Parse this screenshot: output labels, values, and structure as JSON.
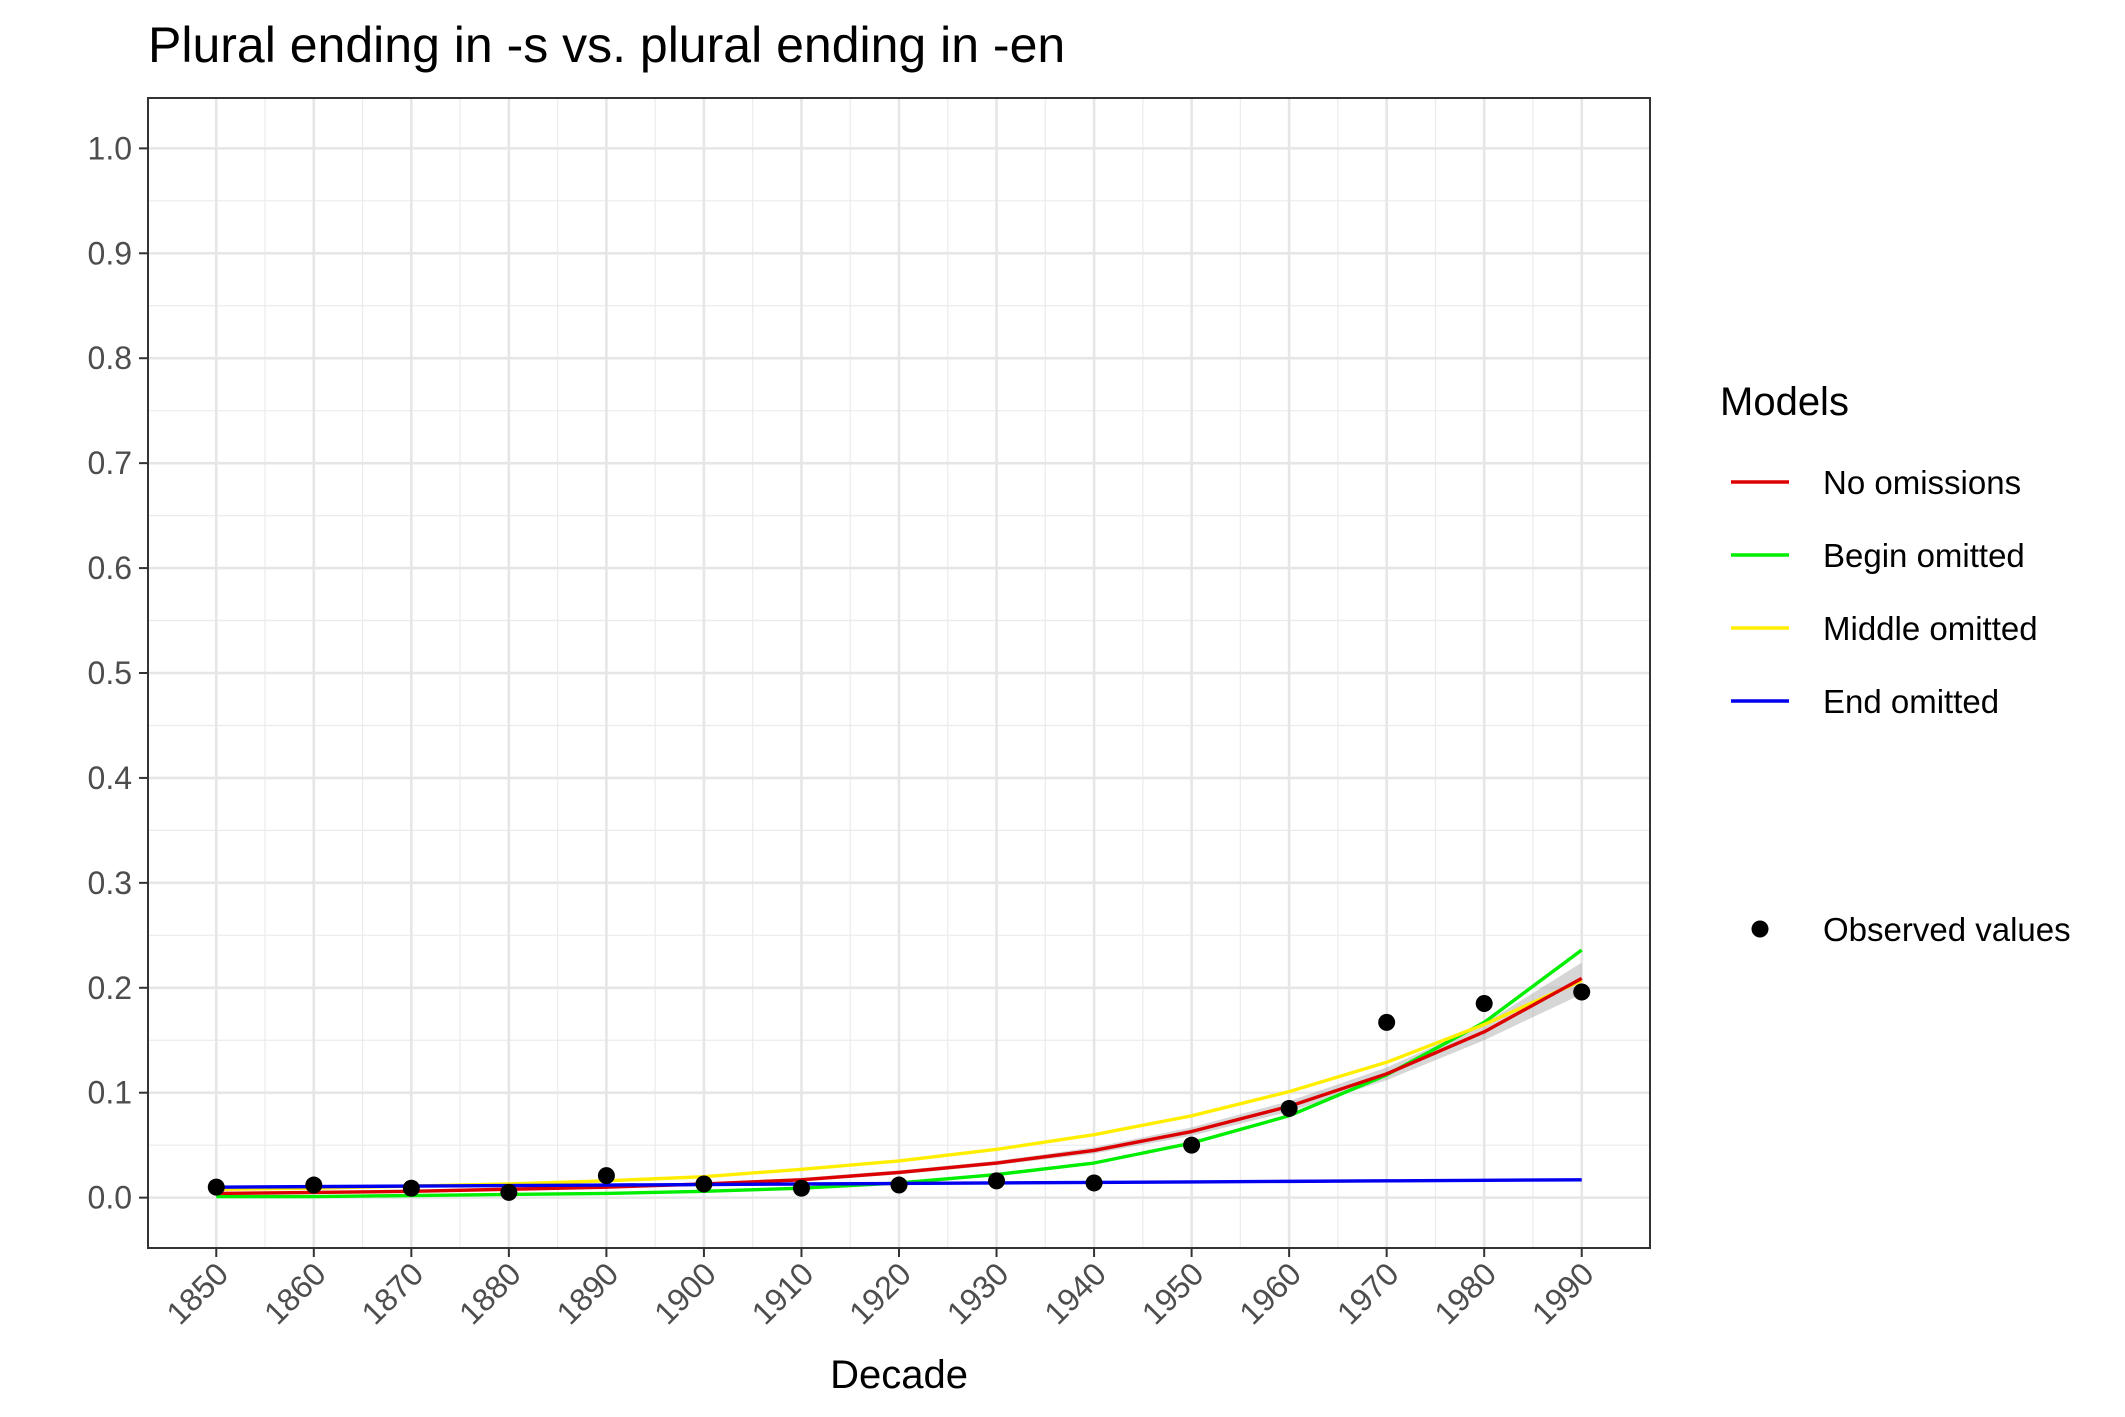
{
  "chart_data": {
    "type": "line",
    "title": "Plural ending in -s vs. plural ending in -en",
    "xlabel": "Decade",
    "ylabel": "",
    "x": [
      1850,
      1860,
      1870,
      1880,
      1890,
      1900,
      1910,
      1920,
      1930,
      1940,
      1950,
      1960,
      1970,
      1980,
      1990
    ],
    "xlim": [
      1843,
      1997
    ],
    "ylim": [
      -0.048,
      1.048
    ],
    "y_ticks": [
      "0.0",
      "0.1",
      "0.2",
      "0.3",
      "0.4",
      "0.5",
      "0.6",
      "0.7",
      "0.8",
      "0.9",
      "1.0"
    ],
    "x_ticks": [
      "1850",
      "1860",
      "1870",
      "1880",
      "1890",
      "1900",
      "1910",
      "1920",
      "1930",
      "1940",
      "1950",
      "1960",
      "1970",
      "1980",
      "1990"
    ],
    "grid": true,
    "legend": {
      "title": "Models",
      "position": "right",
      "points_label": "Observed values"
    },
    "series": [
      {
        "name": "No omissions",
        "color": "#e41a1c",
        "stroke": "#dd0000",
        "values": [
          0.004,
          0.005,
          0.006,
          0.008,
          0.01,
          0.013,
          0.017,
          0.024,
          0.033,
          0.045,
          0.063,
          0.087,
          0.118,
          0.158,
          0.209
        ]
      },
      {
        "name": "Begin omitted",
        "color": "#00ff00",
        "stroke": "#00ee00",
        "values": [
          0.001,
          0.001,
          0.002,
          0.003,
          0.004,
          0.006,
          0.009,
          0.014,
          0.022,
          0.033,
          0.052,
          0.078,
          0.117,
          0.167,
          0.236
        ]
      },
      {
        "name": "Middle omitted",
        "color": "#ffff00",
        "stroke": "#ffee00",
        "values": [
          0.008,
          0.009,
          0.011,
          0.013,
          0.016,
          0.02,
          0.027,
          0.035,
          0.046,
          0.06,
          0.078,
          0.101,
          0.129,
          0.165,
          0.207
        ]
      },
      {
        "name": "End omitted",
        "color": "#0000ff",
        "stroke": "#0000ee",
        "values": [
          0.01,
          0.0105,
          0.011,
          0.0115,
          0.012,
          0.0125,
          0.013,
          0.0135,
          0.014,
          0.0145,
          0.015,
          0.0155,
          0.016,
          0.0165,
          0.017
        ]
      }
    ],
    "confidence_band": {
      "lower": [
        0.003,
        0.004,
        0.005,
        0.007,
        0.009,
        0.012,
        0.016,
        0.022,
        0.031,
        0.042,
        0.059,
        0.082,
        0.112,
        0.15,
        0.194
      ],
      "upper": [
        0.005,
        0.006,
        0.007,
        0.009,
        0.011,
        0.014,
        0.019,
        0.026,
        0.035,
        0.048,
        0.067,
        0.092,
        0.124,
        0.166,
        0.224
      ]
    },
    "observed": [
      0.01,
      0.012,
      0.009,
      0.005,
      0.021,
      0.013,
      0.009,
      0.012,
      0.016,
      0.014,
      0.05,
      0.085,
      0.167,
      0.185,
      0.196
    ]
  }
}
